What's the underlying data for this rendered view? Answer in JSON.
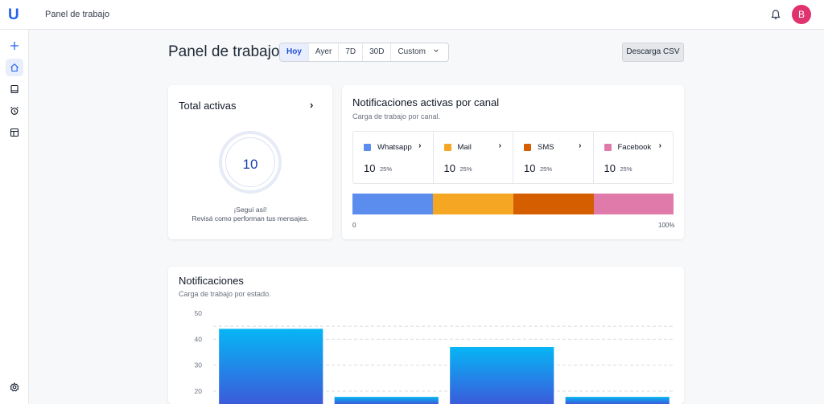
{
  "app": {
    "logo": "U",
    "title": "Panel de trabajo",
    "avatar_initial": "B"
  },
  "sidebar": {
    "items": [
      "plus-icon",
      "home-icon",
      "inbox-icon",
      "alarm-icon",
      "layout-icon",
      "settings-icon"
    ]
  },
  "header": {
    "title": "Panel de trabajo",
    "ranges": [
      "Hoy",
      "Ayer",
      "7D",
      "30D",
      "Custom"
    ],
    "selected_range": "Hoy",
    "csv_button": "Descarga CSV"
  },
  "total_card": {
    "title": "Total activas",
    "value": "10",
    "message_line1": "¡Seguí así!",
    "message_line2": "Revisá como performan tus mensajes."
  },
  "channels_card": {
    "title": "Notificaciones activas por canal",
    "subtitle": "Carga de trabajo por canal.",
    "channels": [
      {
        "name": "Whatsapp",
        "value": "10",
        "pct": "25%",
        "color": "#5b8def"
      },
      {
        "name": "Mail",
        "value": "10",
        "pct": "25%",
        "color": "#f5a623"
      },
      {
        "name": "SMS",
        "value": "10",
        "pct": "25%",
        "color": "#d55e00"
      },
      {
        "name": "Facebook",
        "value": "10",
        "pct": "25%",
        "color": "#e07aaa"
      }
    ],
    "axis_start": "0",
    "axis_end": "100%"
  },
  "notif_card": {
    "title": "Notificaciones",
    "subtitle": "Carga de trabajo por estado."
  },
  "chart_data": {
    "type": "bar",
    "categories": [
      "",
      "",
      "",
      ""
    ],
    "values": [
      44,
      17.8,
      37,
      17.8
    ],
    "ylim": [
      17,
      50
    ],
    "ticks": [
      "50",
      "40",
      "30",
      "20"
    ],
    "tick_values": [
      50,
      40,
      30,
      20
    ],
    "grid": "dashed",
    "bar_gradient": [
      "#06b6f5",
      "#3b5bdb"
    ]
  }
}
